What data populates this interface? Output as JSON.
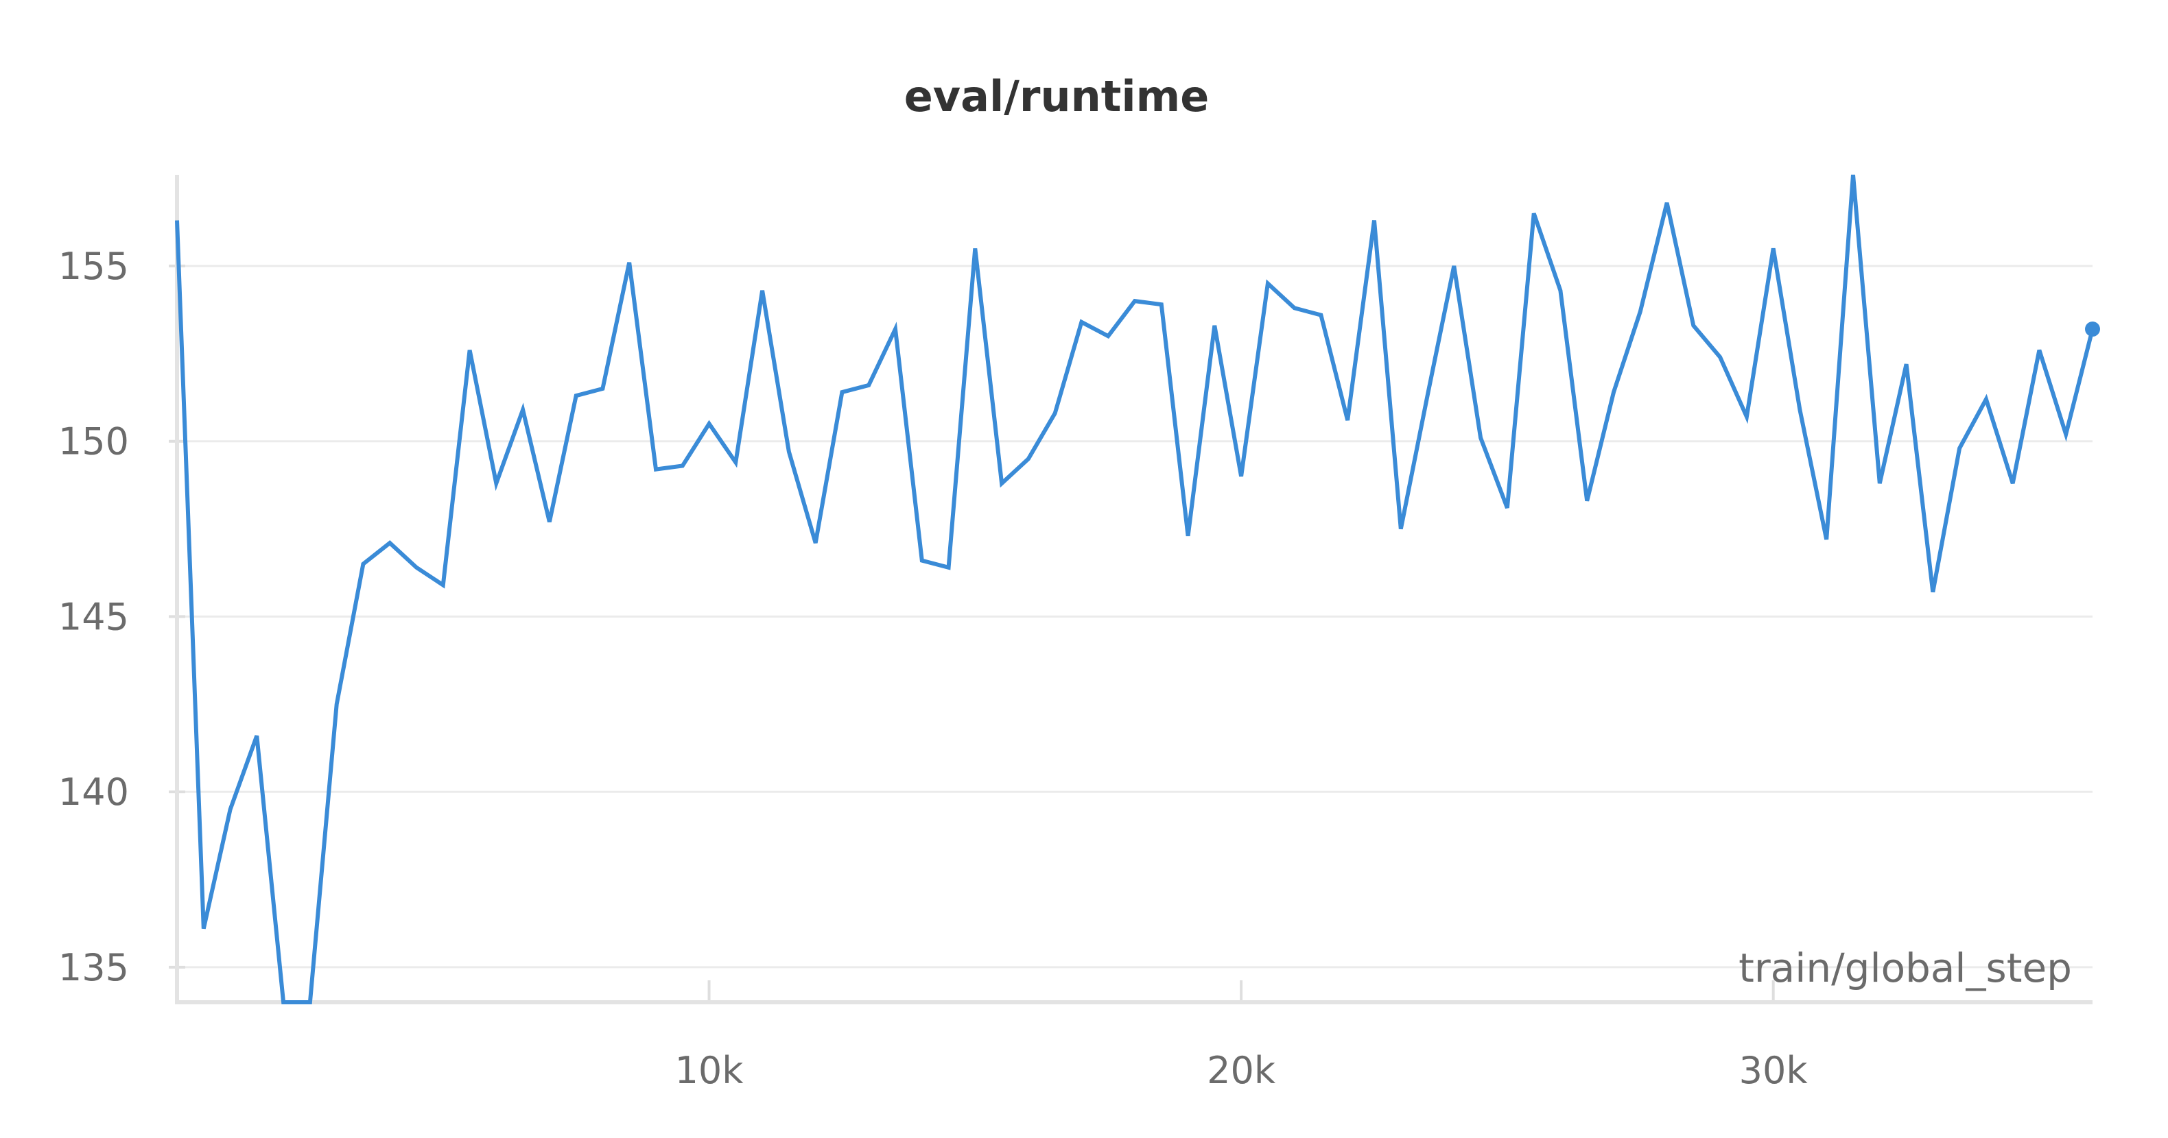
{
  "chart_data": {
    "type": "line",
    "title": "eval/runtime",
    "xlabel": "train/global_step",
    "ylabel": "",
    "xlim": [
      0,
      36000
    ],
    "ylim": [
      134,
      157.6
    ],
    "x_ticks": [
      10000,
      20000,
      30000
    ],
    "x_tick_labels": [
      "10k",
      "20k",
      "30k"
    ],
    "y_ticks": [
      135,
      140,
      145,
      150,
      155
    ],
    "y_tick_labels": [
      "135",
      "140",
      "145",
      "150",
      "155"
    ],
    "grid": true,
    "line_color": "#3a8bd7",
    "series": [
      {
        "x": [
          0,
          500,
          1000,
          1500,
          2000,
          2500,
          3000,
          3500,
          4000,
          4500,
          5000,
          5500,
          6000,
          6500,
          7000,
          7500,
          8000,
          8500,
          9000,
          9500,
          10000,
          10500,
          11000,
          11500,
          12000,
          12500,
          13000,
          13500,
          14000,
          14500,
          15000,
          15500,
          16000,
          16500,
          17000,
          17500,
          18000,
          18500,
          19000,
          19500,
          20000,
          20500,
          21000,
          21500,
          22000,
          22500,
          23000,
          23500,
          24000,
          24500,
          25000,
          25500,
          26000,
          26500,
          27000,
          27500,
          28000,
          28500,
          29000,
          29500,
          30000,
          30500,
          31000,
          31500,
          32000,
          32500,
          33000,
          33500,
          34000,
          34500,
          35000,
          35500,
          36000
        ],
        "values": [
          156.3,
          136.1,
          139.5,
          141.6,
          134.0,
          134.0,
          142.5,
          146.5,
          147.1,
          146.4,
          145.9,
          152.6,
          148.8,
          150.9,
          147.7,
          151.3,
          151.5,
          155.1,
          149.2,
          149.3,
          150.5,
          149.4,
          154.3,
          149.7,
          147.1,
          151.4,
          151.6,
          153.2,
          146.6,
          146.4,
          155.5,
          148.8,
          149.5,
          150.8,
          153.4,
          153.0,
          154.0,
          153.9,
          147.3,
          153.3,
          149.0,
          154.5,
          153.8,
          153.6,
          150.6,
          156.3,
          147.5,
          151.3,
          155.0,
          150.1,
          148.1,
          156.5,
          154.3,
          148.3,
          151.4,
          153.7,
          156.8,
          153.3,
          152.4,
          150.7,
          155.5,
          150.9,
          147.2,
          157.6,
          148.8,
          152.2,
          145.7,
          149.8,
          151.2,
          148.8,
          152.6,
          150.2,
          153.2
        ]
      }
    ]
  }
}
